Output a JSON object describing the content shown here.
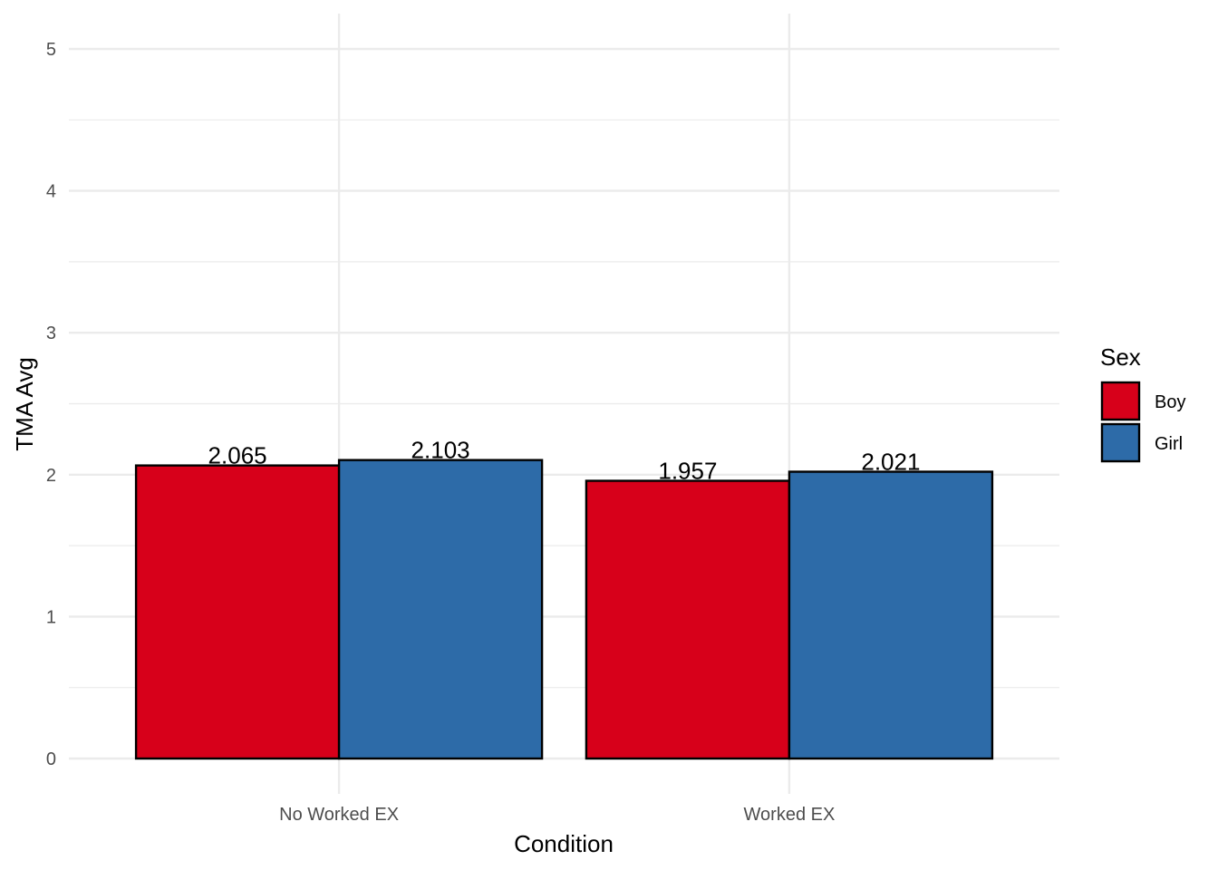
{
  "chart_data": {
    "type": "bar",
    "categories": [
      "No Worked EX",
      "Worked EX"
    ],
    "series": [
      {
        "name": "Boy",
        "values": [
          2.065,
          1.957
        ],
        "labels": [
          "2.065",
          "1.957"
        ],
        "color": "#D7001A"
      },
      {
        "name": "Girl",
        "values": [
          2.103,
          2.021
        ],
        "labels": [
          "2.103",
          "2.021"
        ],
        "color": "#2D6BA8"
      }
    ],
    "xlabel": "Condition",
    "ylabel": "TMA Avg",
    "ylim": [
      0,
      5.1
    ],
    "yticks": [
      0,
      1,
      2,
      3,
      4,
      5
    ],
    "ytick_labels": [
      "0",
      "1",
      "2",
      "3",
      "4",
      "5"
    ],
    "legend_title": "Sex",
    "legend_position": "right",
    "grid": true,
    "colors": {
      "grid": "#EBEBEB",
      "bar_outline": "#000000",
      "tick_text": "#4D4D4D"
    }
  }
}
